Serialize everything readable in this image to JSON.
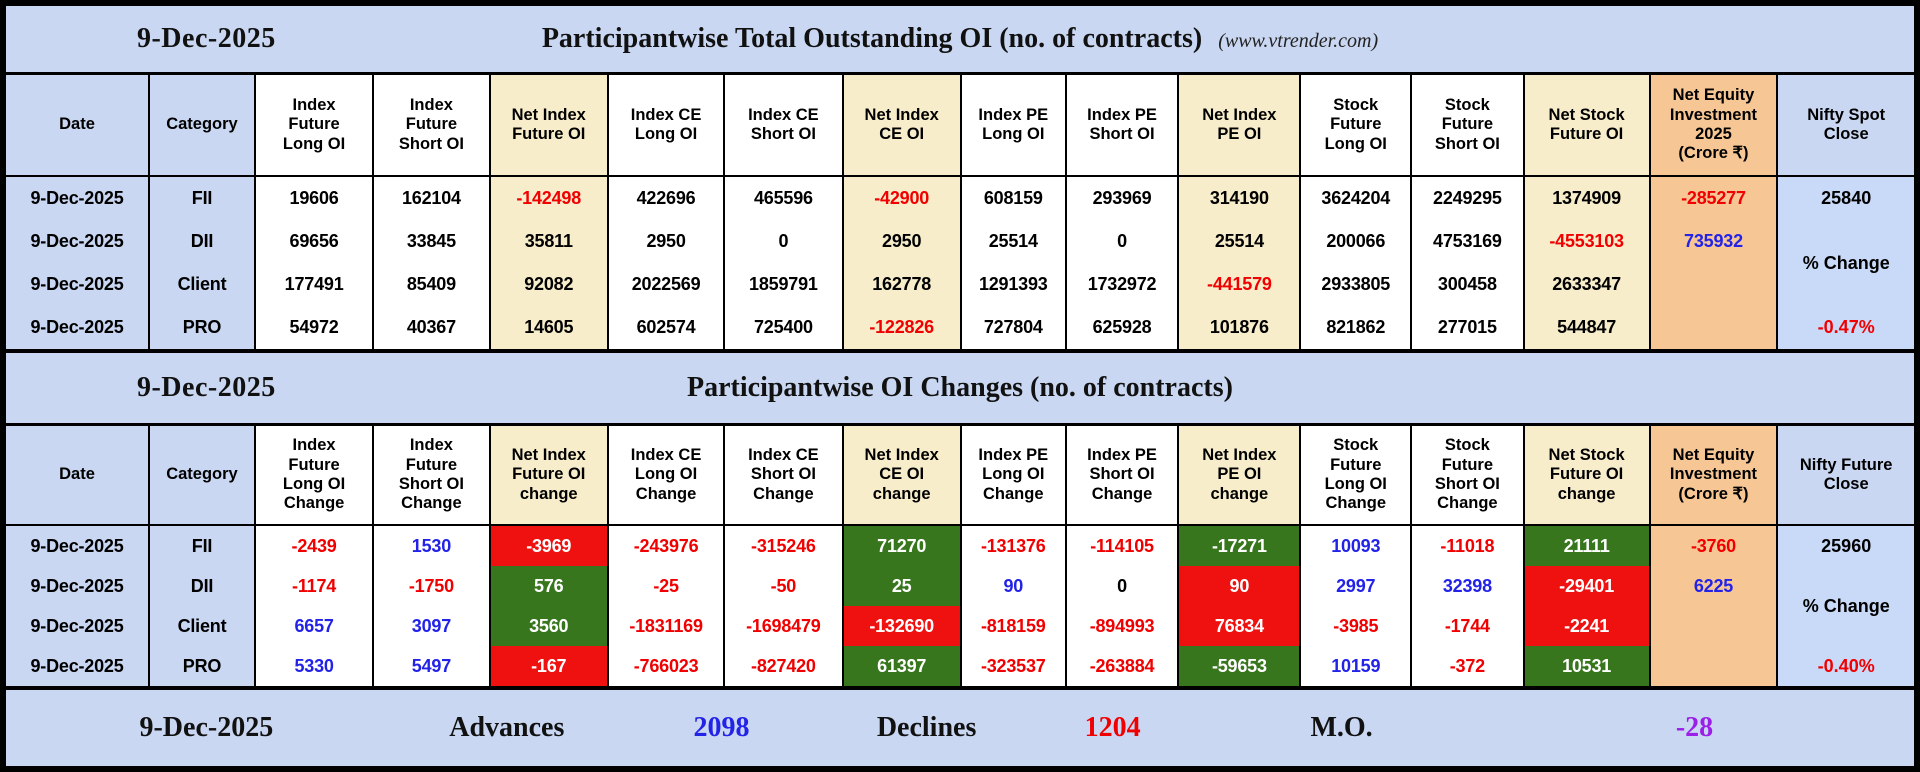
{
  "colors": {
    "banner_bg": "#c9d7f2",
    "cream_bg": "#f7edcb",
    "orange_bg": "#f6c795",
    "nifty_bg": "#c9daf8",
    "green_bg": "#38761d",
    "red_bg": "#ef1010",
    "red_text": "#f00000",
    "blue_text": "#2323e8",
    "purple_text": "#9b1fe8"
  },
  "t1": {
    "banner": {
      "date": "9-Dec-2025",
      "title": "Participantwise Total Outstanding OI (no. of contracts)",
      "site": "(www.vtrender.com)"
    },
    "headers": [
      "Date",
      "Category",
      "Index\nFuture\nLong OI",
      "Index\nFuture\nShort OI",
      "Net Index\nFuture OI",
      "Index CE\nLong OI",
      "Index CE\nShort OI",
      "Net Index\nCE OI",
      "Index PE\nLong OI",
      "Index PE\nShort OI",
      "Net Index\nPE OI",
      "Stock\nFuture\nLong OI",
      "Stock\nFuture\nShort OI",
      "Net Stock\nFuture OI",
      "Net Equity\nInvestment\n2025\n(Crore ₹)",
      "Nifty Spot\nClose"
    ],
    "columns": [
      {
        "bg": "blue",
        "cells": [
          {
            "v": "9-Dec-2025",
            "c": "k"
          },
          {
            "v": "9-Dec-2025",
            "c": "k"
          },
          {
            "v": "9-Dec-2025",
            "c": "k"
          },
          {
            "v": "9-Dec-2025",
            "c": "k"
          }
        ]
      },
      {
        "bg": "blue",
        "cells": [
          {
            "v": "FII",
            "c": "k"
          },
          {
            "v": "DII",
            "c": "k"
          },
          {
            "v": "Client",
            "c": "k"
          },
          {
            "v": "PRO",
            "c": "k"
          }
        ]
      },
      {
        "bg": "w",
        "cells": [
          {
            "v": "19606",
            "c": "k"
          },
          {
            "v": "69656",
            "c": "k"
          },
          {
            "v": "177491",
            "c": "k"
          },
          {
            "v": "54972",
            "c": "k"
          }
        ]
      },
      {
        "bg": "w",
        "cells": [
          {
            "v": "162104",
            "c": "k"
          },
          {
            "v": "33845",
            "c": "k"
          },
          {
            "v": "85409",
            "c": "k"
          },
          {
            "v": "40367",
            "c": "k"
          }
        ]
      },
      {
        "bg": "cream",
        "cells": [
          {
            "v": "-142498",
            "c": "r"
          },
          {
            "v": "35811",
            "c": "k"
          },
          {
            "v": "92082",
            "c": "k"
          },
          {
            "v": "14605",
            "c": "k"
          }
        ]
      },
      {
        "bg": "w",
        "cells": [
          {
            "v": "422696",
            "c": "k"
          },
          {
            "v": "2950",
            "c": "k"
          },
          {
            "v": "2022569",
            "c": "k"
          },
          {
            "v": "602574",
            "c": "k"
          }
        ]
      },
      {
        "bg": "w",
        "cells": [
          {
            "v": "465596",
            "c": "k"
          },
          {
            "v": "0",
            "c": "k"
          },
          {
            "v": "1859791",
            "c": "k"
          },
          {
            "v": "725400",
            "c": "k"
          }
        ]
      },
      {
        "bg": "cream",
        "cells": [
          {
            "v": "-42900",
            "c": "r"
          },
          {
            "v": "2950",
            "c": "k"
          },
          {
            "v": "162778",
            "c": "k"
          },
          {
            "v": "-122826",
            "c": "r"
          }
        ]
      },
      {
        "bg": "w",
        "cells": [
          {
            "v": "608159",
            "c": "k"
          },
          {
            "v": "25514",
            "c": "k"
          },
          {
            "v": "1291393",
            "c": "k"
          },
          {
            "v": "727804",
            "c": "k"
          }
        ]
      },
      {
        "bg": "w",
        "cells": [
          {
            "v": "293969",
            "c": "k"
          },
          {
            "v": "0",
            "c": "k"
          },
          {
            "v": "1732972",
            "c": "k"
          },
          {
            "v": "625928",
            "c": "k"
          }
        ]
      },
      {
        "bg": "cream",
        "cells": [
          {
            "v": "314190",
            "c": "k"
          },
          {
            "v": "25514",
            "c": "k"
          },
          {
            "v": "-441579",
            "c": "r"
          },
          {
            "v": "101876",
            "c": "k"
          }
        ]
      },
      {
        "bg": "w",
        "cells": [
          {
            "v": "3624204",
            "c": "k"
          },
          {
            "v": "200066",
            "c": "k"
          },
          {
            "v": "2933805",
            "c": "k"
          },
          {
            "v": "821862",
            "c": "k"
          }
        ]
      },
      {
        "bg": "w",
        "cells": [
          {
            "v": "2249295",
            "c": "k"
          },
          {
            "v": "4753169",
            "c": "k"
          },
          {
            "v": "300458",
            "c": "k"
          },
          {
            "v": "277015",
            "c": "k"
          }
        ]
      },
      {
        "bg": "cream",
        "cells": [
          {
            "v": "1374909",
            "c": "k"
          },
          {
            "v": "-4553103",
            "c": "r"
          },
          {
            "v": "2633347",
            "c": "k"
          },
          {
            "v": "544847",
            "c": "k"
          }
        ]
      },
      {
        "bg": "orange",
        "cells": [
          {
            "v": "-285277",
            "c": "r"
          },
          {
            "v": "735932",
            "c": "b"
          },
          {
            "v": "",
            "c": "k"
          },
          {
            "v": "",
            "c": "k"
          }
        ]
      }
    ],
    "nifty": {
      "close": "25840",
      "pct_label": "% Change",
      "pct": "-0.47%"
    }
  },
  "t2": {
    "banner": {
      "date": "9-Dec-2025",
      "title": "Participantwise OI Changes (no. of contracts)"
    },
    "headers": [
      "Date",
      "Category",
      "Index\nFuture\nLong OI\nChange",
      "Index\nFuture\nShort OI\nChange",
      "Net Index\nFuture OI\nchange",
      "Index CE\nLong OI\nChange",
      "Index CE\nShort OI\nChange",
      "Net Index\nCE OI\nchange",
      "Index PE\nLong OI\nChange",
      "Index PE\nShort OI\nChange",
      "Net Index\nPE OI\nchange",
      "Stock\nFuture\nLong OI\nChange",
      "Stock\nFuture\nShort OI\nChange",
      "Net Stock\nFuture OI\nchange",
      "Net Equity\nInvestment\n(Crore ₹)",
      "Nifty Future\nClose"
    ],
    "columns": [
      {
        "bg": "blue",
        "cells": [
          {
            "v": "9-Dec-2025",
            "c": "k"
          },
          {
            "v": "9-Dec-2025",
            "c": "k"
          },
          {
            "v": "9-Dec-2025",
            "c": "k"
          },
          {
            "v": "9-Dec-2025",
            "c": "k"
          }
        ]
      },
      {
        "bg": "blue",
        "cells": [
          {
            "v": "FII",
            "c": "k"
          },
          {
            "v": "DII",
            "c": "k"
          },
          {
            "v": "Client",
            "c": "k"
          },
          {
            "v": "PRO",
            "c": "k"
          }
        ]
      },
      {
        "bg": "w",
        "cells": [
          {
            "v": "-2439",
            "c": "r"
          },
          {
            "v": "-1174",
            "c": "r"
          },
          {
            "v": "6657",
            "c": "b"
          },
          {
            "v": "5330",
            "c": "b"
          }
        ]
      },
      {
        "bg": "w",
        "cells": [
          {
            "v": "1530",
            "c": "b"
          },
          {
            "v": "-1750",
            "c": "r"
          },
          {
            "v": "3097",
            "c": "b"
          },
          {
            "v": "5497",
            "c": "b"
          }
        ]
      },
      {
        "bg": "w",
        "cells": [
          {
            "v": "-3969",
            "c": "R"
          },
          {
            "v": "576",
            "c": "G"
          },
          {
            "v": "3560",
            "c": "G"
          },
          {
            "v": "-167",
            "c": "R"
          }
        ]
      },
      {
        "bg": "w",
        "cells": [
          {
            "v": "-243976",
            "c": "r"
          },
          {
            "v": "-25",
            "c": "r"
          },
          {
            "v": "-1831169",
            "c": "r"
          },
          {
            "v": "-766023",
            "c": "r"
          }
        ]
      },
      {
        "bg": "w",
        "cells": [
          {
            "v": "-315246",
            "c": "r"
          },
          {
            "v": "-50",
            "c": "r"
          },
          {
            "v": "-1698479",
            "c": "r"
          },
          {
            "v": "-827420",
            "c": "r"
          }
        ]
      },
      {
        "bg": "w",
        "cells": [
          {
            "v": "71270",
            "c": "G"
          },
          {
            "v": "25",
            "c": "G"
          },
          {
            "v": "-132690",
            "c": "R"
          },
          {
            "v": "61397",
            "c": "G"
          }
        ]
      },
      {
        "bg": "w",
        "cells": [
          {
            "v": "-131376",
            "c": "r"
          },
          {
            "v": "90",
            "c": "b"
          },
          {
            "v": "-818159",
            "c": "r"
          },
          {
            "v": "-323537",
            "c": "r"
          }
        ]
      },
      {
        "bg": "w",
        "cells": [
          {
            "v": "-114105",
            "c": "r"
          },
          {
            "v": "0",
            "c": "k"
          },
          {
            "v": "-894993",
            "c": "r"
          },
          {
            "v": "-263884",
            "c": "r"
          }
        ]
      },
      {
        "bg": "w",
        "cells": [
          {
            "v": "-17271",
            "c": "G"
          },
          {
            "v": "90",
            "c": "R"
          },
          {
            "v": "76834",
            "c": "R"
          },
          {
            "v": "-59653",
            "c": "G"
          }
        ]
      },
      {
        "bg": "w",
        "cells": [
          {
            "v": "10093",
            "c": "b"
          },
          {
            "v": "2997",
            "c": "b"
          },
          {
            "v": "-3985",
            "c": "r"
          },
          {
            "v": "10159",
            "c": "b"
          }
        ]
      },
      {
        "bg": "w",
        "cells": [
          {
            "v": "-11018",
            "c": "r"
          },
          {
            "v": "32398",
            "c": "b"
          },
          {
            "v": "-1744",
            "c": "r"
          },
          {
            "v": "-372",
            "c": "r"
          }
        ]
      },
      {
        "bg": "w",
        "cells": [
          {
            "v": "21111",
            "c": "G"
          },
          {
            "v": "-29401",
            "c": "R"
          },
          {
            "v": "-2241",
            "c": "R"
          },
          {
            "v": "10531",
            "c": "G"
          }
        ]
      },
      {
        "bg": "orange",
        "cells": [
          {
            "v": "-3760",
            "c": "r"
          },
          {
            "v": "6225",
            "c": "b"
          },
          {
            "v": "",
            "c": "k"
          },
          {
            "v": "",
            "c": "k"
          }
        ]
      }
    ],
    "nifty": {
      "close": "25960",
      "pct_label": "% Change",
      "pct": "-0.40%"
    }
  },
  "footer": {
    "date": "9-Dec-2025",
    "advances_label": "Advances",
    "advances": "2098",
    "declines_label": "Declines",
    "declines": "1204",
    "mo_label": "M.O.",
    "mo": "-28"
  }
}
